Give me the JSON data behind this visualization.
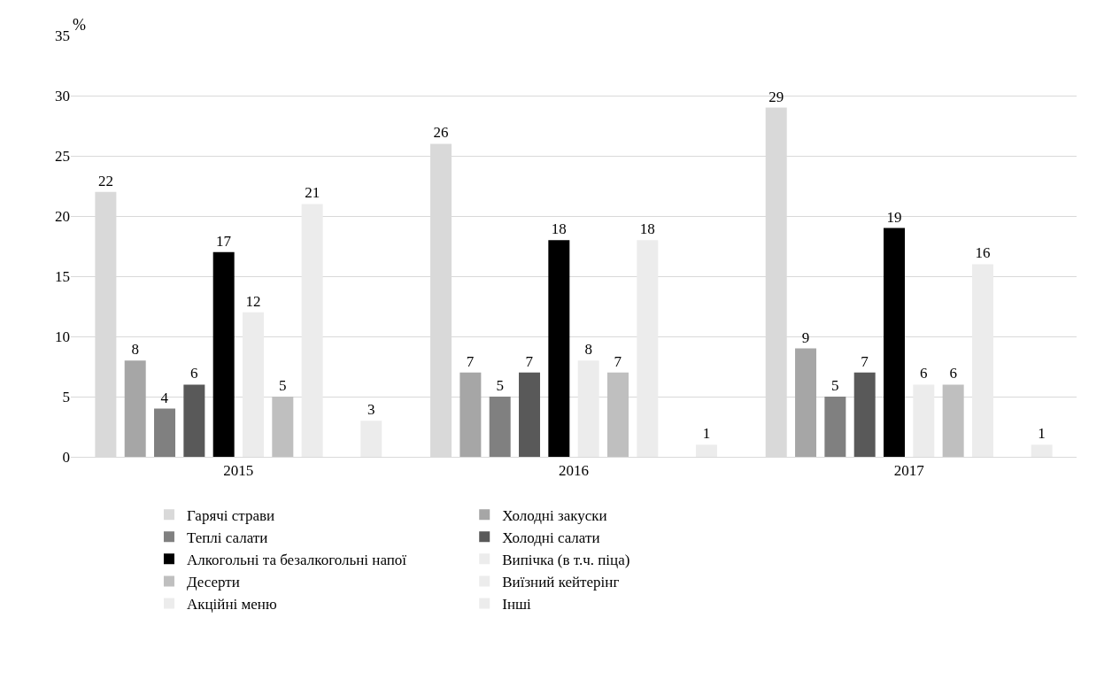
{
  "chart_data": {
    "type": "bar",
    "ylabel": "%",
    "categories": [
      "2015",
      "2016",
      "2017"
    ],
    "series": [
      {
        "name": "Гарячі страви",
        "color": "#d9d9d9",
        "values": [
          22,
          26,
          29
        ]
      },
      {
        "name": "Холодні закуски",
        "color": "#a6a6a6",
        "values": [
          8,
          7,
          9
        ]
      },
      {
        "name": "Теплі салати",
        "color": "#808080",
        "values": [
          4,
          5,
          5
        ]
      },
      {
        "name": "Холодні салати",
        "color": "#595959",
        "values": [
          6,
          7,
          7
        ]
      },
      {
        "name": "Алкогольні та безалкогольні напої",
        "color": "#000000",
        "values": [
          17,
          18,
          19
        ]
      },
      {
        "name": "Випічка (в т.ч. піца)",
        "color": "#ececec",
        "values": [
          12,
          8,
          6
        ]
      },
      {
        "name": "Десерти",
        "color": "#bfbfbf",
        "values": [
          5,
          7,
          6
        ]
      },
      {
        "name": "Виїзний кейтерінг",
        "color": "#ececec",
        "values": [
          21,
          18,
          16
        ]
      },
      {
        "name": "Акційні меню",
        "color": "#ececec",
        "values": [
          null,
          null,
          null
        ]
      },
      {
        "name": "Інші",
        "color": "#ececec",
        "values": [
          3,
          1,
          1
        ]
      }
    ],
    "ylim": [
      0,
      35
    ],
    "yticks": [
      0,
      5,
      10,
      15,
      20,
      25,
      30,
      35
    ],
    "grid": "y",
    "legend": "bottom",
    "data_labels": true
  }
}
